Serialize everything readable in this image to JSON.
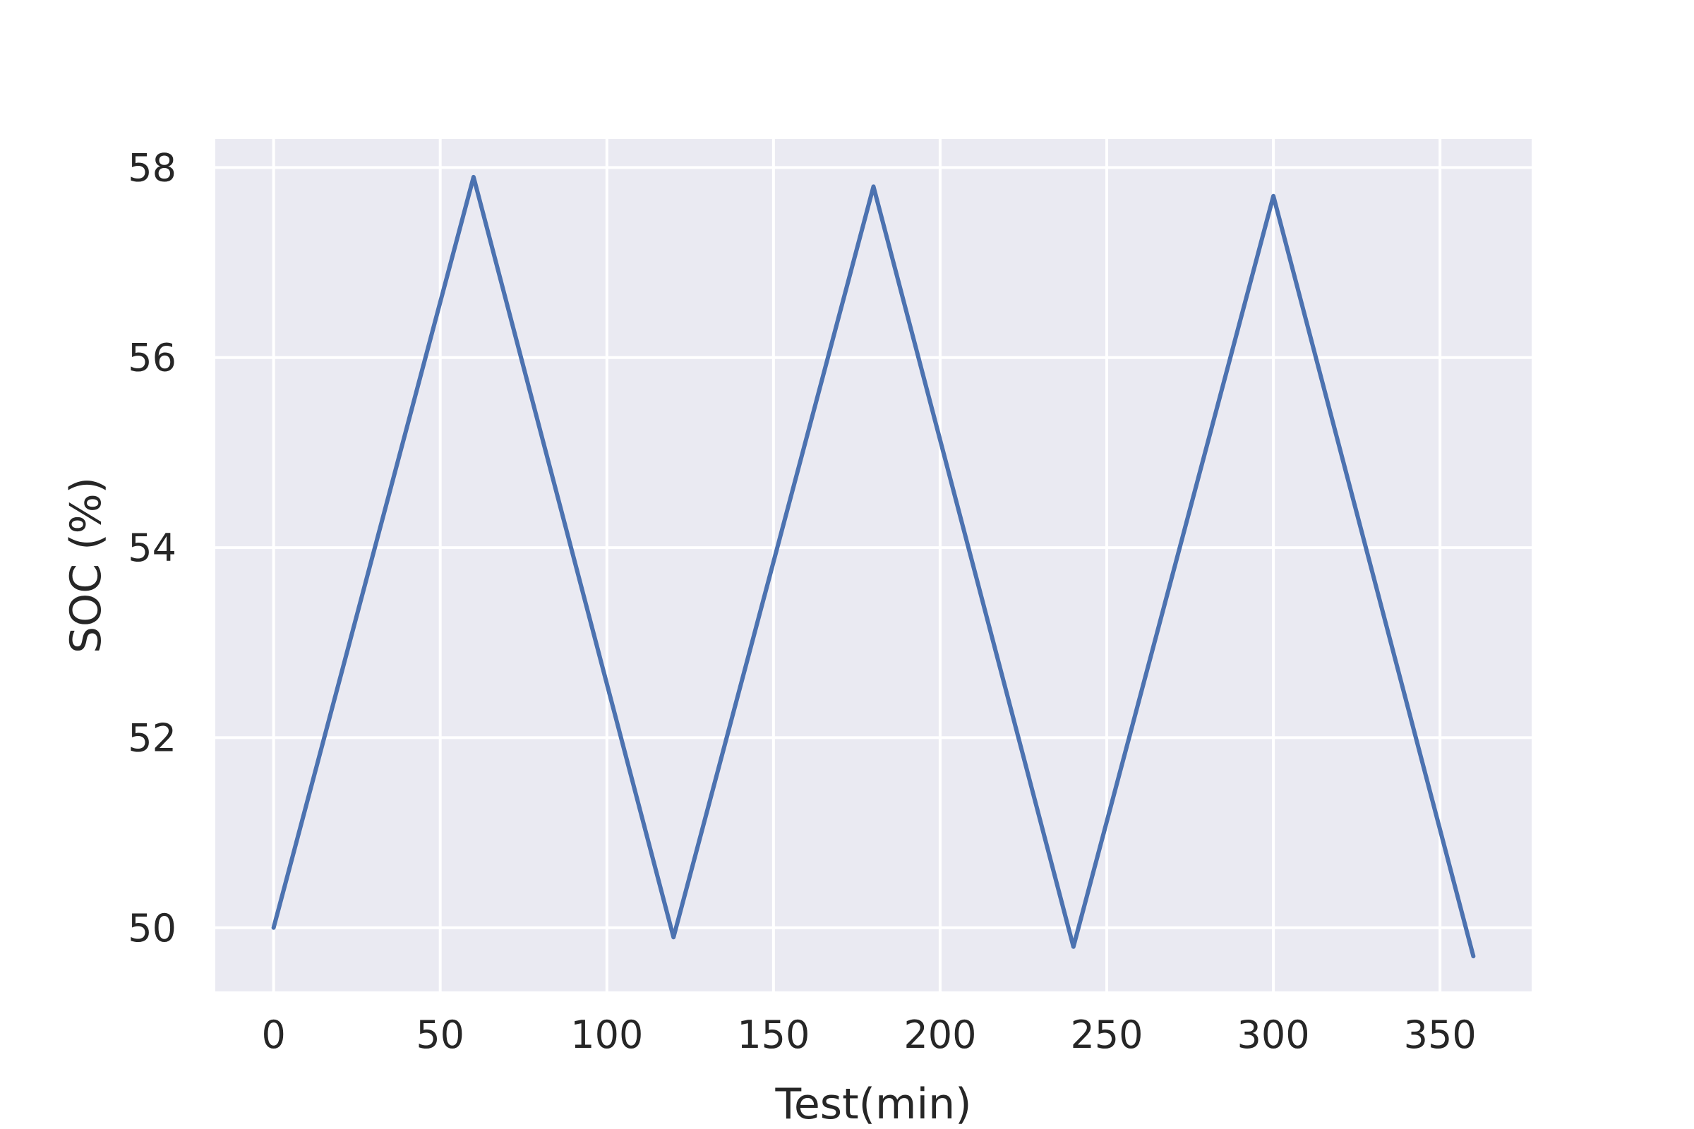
{
  "chart_data": {
    "type": "line",
    "title": "",
    "xlabel": "Test(min)",
    "ylabel": "SOC (%)",
    "xlim": [
      -17.5,
      377.5
    ],
    "ylim": [
      49.33,
      58.3
    ],
    "xticks": [
      0,
      50,
      100,
      150,
      200,
      250,
      300,
      350
    ],
    "yticks": [
      50,
      52,
      54,
      56,
      58
    ],
    "grid": true,
    "background": "#eaeaf2",
    "grid_color": "#ffffff",
    "series": [
      {
        "color": "#4c72b0",
        "x": [
          0,
          60,
          120,
          180,
          240,
          300,
          360
        ],
        "y": [
          50.0,
          57.9,
          49.9,
          57.8,
          49.8,
          57.7,
          49.7
        ]
      }
    ]
  }
}
